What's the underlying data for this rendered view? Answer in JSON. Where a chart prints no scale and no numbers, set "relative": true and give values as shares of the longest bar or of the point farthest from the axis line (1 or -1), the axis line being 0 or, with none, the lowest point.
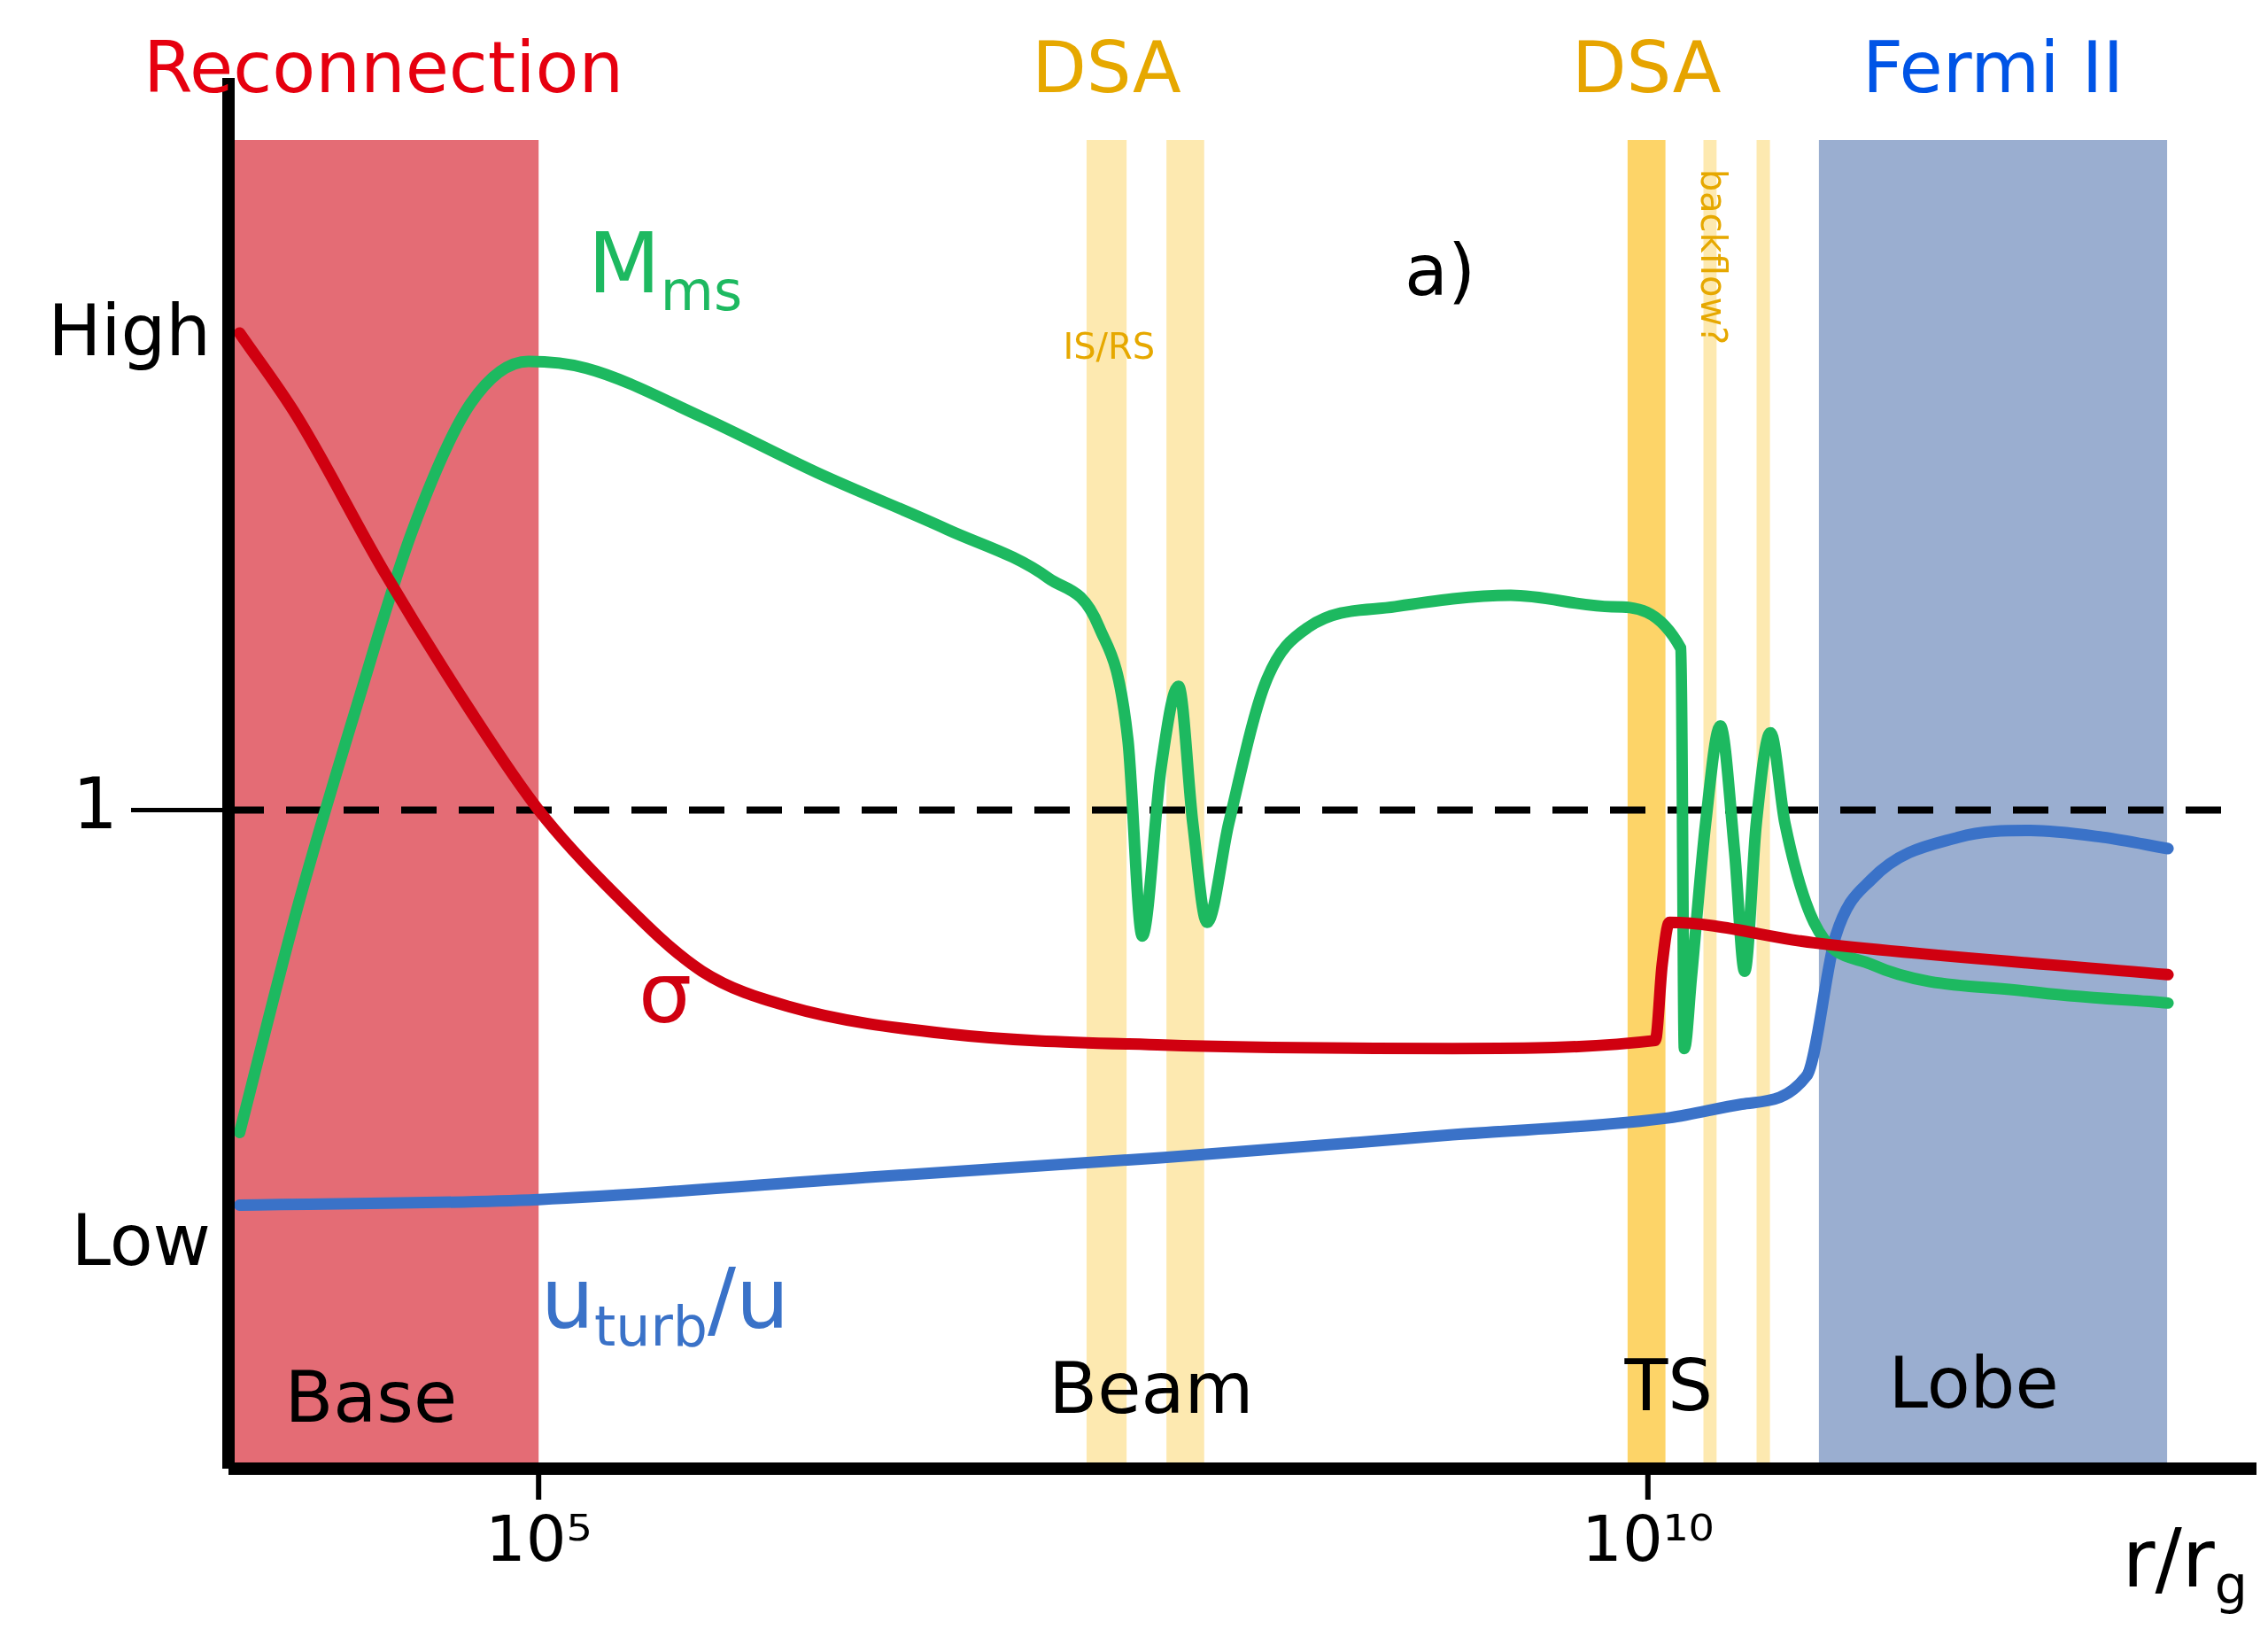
{
  "chart_data": {
    "type": "line",
    "relative": true,
    "log": "x",
    "legend": false,
    "marker": "none",
    "xlabel": "r/r$_{g}$",
    "xlim": [
      4000,
      4400000000000.0
    ],
    "xticks": [
      {
        "value": 100000,
        "label": "10⁵"
      },
      {
        "value": 10000000000,
        "label": "10¹⁰"
      }
    ],
    "series": [
      {
        "name": "σ",
        "color": "#d00010",
        "x": [
          4490,
          8180,
          20100,
          49400,
          100000,
          221000,
          545000,
          1340000,
          6950000,
          65900000,
          1320000000,
          10800000000,
          11600000000,
          12500000000,
          56100000000,
          2210000000000
        ],
        "values": [
          1.0,
          0.926,
          0.79,
          0.667,
          0.58,
          0.506,
          0.438,
          0.407,
          0.383,
          0.373,
          0.37,
          0.377,
          0.444,
          0.481,
          0.463,
          0.435
        ]
      },
      {
        "name": "M$_{ms}$",
        "color": "#1db960",
        "x": [
          4490,
          8180,
          14900,
          27100,
          49400,
          89900,
          164000,
          545000,
          1800000,
          6950000,
          19900000,
          33600000,
          45300000,
          52600000,
          63900000,
          76600000,
          88900000,
          103000000,
          129000000,
          188000000,
          295000000,
          726000000,
          2410000000,
          6880000000,
          14100000000,
          14600000000,
          15700000000,
          18200000000,
          21200000000,
          24600000000,
          27300000000,
          30800000000,
          35700000000,
          41500000000,
          56100000000,
          102000000000,
          531000000000,
          2210000000000
        ],
        "values": [
          0.296,
          0.494,
          0.667,
          0.827,
          0.938,
          0.975,
          0.969,
          0.926,
          0.877,
          0.827,
          0.784,
          0.741,
          0.642,
          0.469,
          0.617,
          0.689,
          0.568,
          0.481,
          0.568,
          0.691,
          0.741,
          0.759,
          0.769,
          0.759,
          0.722,
          0.37,
          0.432,
          0.568,
          0.654,
          0.543,
          0.438,
          0.568,
          0.648,
          0.568,
          0.481,
          0.444,
          0.42,
          0.41
        ]
      },
      {
        "name": "u$_{turb}$/u",
        "color": "#3a72c8",
        "x": [
          4490,
          100000,
          3290000,
          65900000,
          1320000000,
          12500000000,
          26500000000,
          52000000000,
          70200000000,
          102000000000,
          251000000000,
          531000000000,
          1120000000000,
          2210000000000
        ],
        "values": [
          0.232,
          0.237,
          0.257,
          0.274,
          0.294,
          0.309,
          0.321,
          0.346,
          0.469,
          0.519,
          0.556,
          0.562,
          0.556,
          0.546
        ]
      }
    ],
    "ref_lines": [
      {
        "axis": "y",
        "value": 0.58,
        "label": "1",
        "color": "#000000",
        "line_style": "dashed"
      }
    ],
    "bands": [
      {
        "axis": "x",
        "from": 4000,
        "to": 100000,
        "label": "Reconnection",
        "color": "#e46c75"
      },
      {
        "axis": "x",
        "from": 29500000,
        "to": 44700000,
        "label": "DSA",
        "color": "#fde9b0"
      },
      {
        "axis": "x",
        "from": 67600000,
        "to": 100000000,
        "color": "#fde9b0"
      },
      {
        "axis": "x",
        "from": 8100000000,
        "to": 12000000000,
        "label": "DSA",
        "color": "#fdd468"
      },
      {
        "axis": "x",
        "from": 17800000000,
        "to": 20400000000,
        "color": "#fde9b0"
      },
      {
        "axis": "x",
        "from": 30900000000,
        "to": 35500000000,
        "color": "#fde9b0"
      },
      {
        "axis": "x",
        "from": 59000000000,
        "to": 2190000000000,
        "label": "Fermi II",
        "color": "#9aaed0"
      }
    ],
    "annotations": [
      "High",
      "Low",
      "IS/RS",
      "backflow?",
      "a)",
      "Base",
      "Beam",
      "TS",
      "Lobe"
    ]
  }
}
